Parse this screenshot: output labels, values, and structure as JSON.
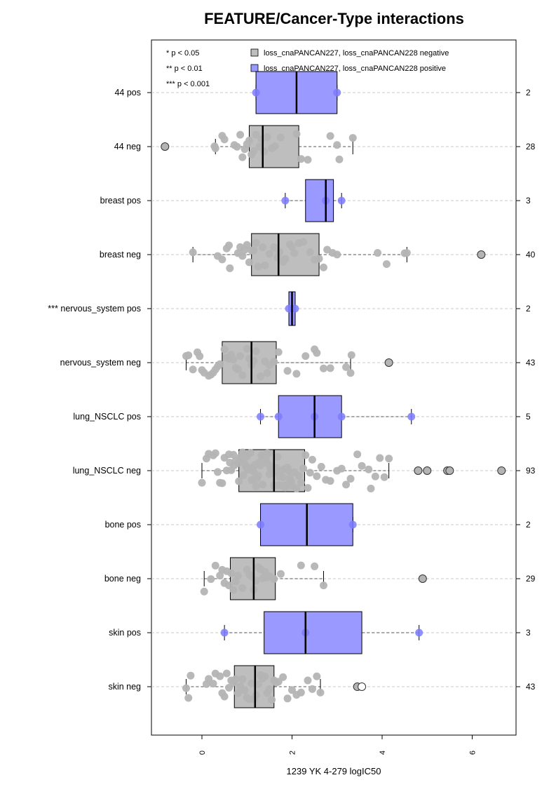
{
  "chart_data": {
    "type": "boxplot",
    "title": "FEATURE/Cancer-Type interactions",
    "xlabel": "1239 YK 4-279 logIC50",
    "ylabel": "",
    "xlim": [
      -1.1,
      7.0
    ],
    "x_ticks": [
      "0",
      "2",
      "4",
      "6"
    ],
    "grid": "horizontal dashed",
    "significance_legend": [
      "* p < 0.05",
      "** p < 0.01",
      "*** p < 0.001"
    ],
    "legend": {
      "placement": "top",
      "entries": [
        {
          "label": "loss_cnaPANCAN227, loss_cnaPANCAN228 negative",
          "color": "#bebebe"
        },
        {
          "label": "loss_cnaPANCAN227, loss_cnaPANCAN228 positive",
          "color": "#9999ff"
        }
      ]
    },
    "colors": {
      "negative": "#bebebe",
      "positive": "#9999ff",
      "negative_point": "#b4b4b4",
      "positive_point": "#7b7bff"
    },
    "groups": [
      {
        "label": "44 pos",
        "type": "positive",
        "n": "2",
        "box": [
          1.2,
          2.1,
          3.0
        ],
        "whiskers": [
          1.2,
          3.0
        ],
        "outliers": [],
        "points": [
          1.2,
          3.0
        ]
      },
      {
        "label": "44 neg",
        "type": "negative",
        "n": "28",
        "box": [
          1.05,
          1.35,
          2.15
        ],
        "whiskers": [
          0.3,
          3.35
        ],
        "outliers": [
          -0.82
        ],
        "points": [
          0.28,
          0.3,
          0.45,
          0.5,
          0.72,
          0.78,
          0.85,
          0.9,
          0.95,
          1.0,
          1.05,
          1.1,
          1.15,
          1.2,
          1.28,
          1.32,
          1.38,
          1.45,
          1.55,
          1.62,
          1.75,
          2.1,
          2.2,
          2.35,
          2.85,
          3.0,
          3.05,
          3.35
        ]
      },
      {
        "label": "breast pos",
        "type": "positive",
        "n": "3",
        "box": [
          2.3,
          2.75,
          2.92
        ],
        "whiskers": [
          1.85,
          3.1
        ],
        "outliers": [],
        "points": [
          1.85,
          2.75,
          3.1
        ]
      },
      {
        "label": "breast neg",
        "type": "negative",
        "n": "40",
        "box": [
          1.1,
          1.7,
          2.6
        ],
        "whiskers": [
          -0.2,
          4.55
        ],
        "outliers": [
          6.2
        ],
        "points": [
          -0.2,
          0.35,
          0.45,
          0.55,
          0.6,
          0.62,
          0.8,
          0.85,
          0.9,
          0.95,
          1.0,
          1.05,
          1.1,
          1.15,
          1.2,
          1.25,
          1.35,
          1.4,
          1.5,
          1.6,
          1.68,
          1.72,
          1.8,
          1.85,
          1.95,
          2.0,
          2.05,
          2.15,
          2.25,
          2.4,
          2.5,
          2.6,
          2.7,
          2.78,
          2.9,
          3.0,
          3.9,
          4.1,
          4.5,
          4.55
        ]
      },
      {
        "label": "*** nervous_system pos",
        "type": "positive",
        "n": "2",
        "box": [
          1.93,
          2.0,
          2.07
        ],
        "whiskers": [
          1.93,
          2.07
        ],
        "outliers": [],
        "points": [
          1.93,
          2.07
        ]
      },
      {
        "label": "nervous_system neg",
        "type": "negative",
        "n": "43",
        "box": [
          0.45,
          1.1,
          1.65
        ],
        "whiskers": [
          -0.35,
          3.3
        ],
        "outliers": [
          4.15
        ],
        "points": [
          -0.35,
          -0.3,
          -0.2,
          -0.1,
          -0.05,
          0.0,
          0.05,
          0.15,
          0.2,
          0.25,
          0.3,
          0.35,
          0.4,
          0.5,
          0.55,
          0.6,
          0.65,
          0.7,
          0.75,
          0.8,
          0.85,
          0.9,
          1.0,
          1.05,
          1.1,
          1.15,
          1.2,
          1.3,
          1.4,
          1.45,
          1.5,
          1.6,
          1.7,
          1.9,
          2.1,
          2.3,
          2.5,
          2.55,
          2.7,
          2.85,
          3.2,
          3.3,
          3.32
        ]
      },
      {
        "label": "lung_NSCLC pos",
        "type": "positive",
        "n": "5",
        "box": [
          1.7,
          2.5,
          3.1
        ],
        "whiskers": [
          1.3,
          4.65
        ],
        "outliers": [],
        "points": [
          1.3,
          1.7,
          2.5,
          3.1,
          4.65
        ]
      },
      {
        "label": "lung_NSCLC neg",
        "type": "negative",
        "n": "93",
        "box": [
          0.82,
          1.6,
          2.28
        ],
        "whiskers": [
          0.0,
          4.15
        ],
        "outliers": [
          4.8,
          5.0,
          5.45,
          5.5,
          6.65
        ],
        "points": [
          0.0,
          0.1,
          0.15,
          0.25,
          0.3,
          0.35,
          0.4,
          0.45,
          0.5,
          0.55,
          0.6,
          0.62,
          0.65,
          0.7,
          0.72,
          0.75,
          0.8,
          0.82,
          0.85,
          0.88,
          0.9,
          0.92,
          0.95,
          0.98,
          1.0,
          1.02,
          1.05,
          1.08,
          1.1,
          1.12,
          1.15,
          1.18,
          1.2,
          1.22,
          1.25,
          1.28,
          1.3,
          1.32,
          1.35,
          1.38,
          1.4,
          1.42,
          1.45,
          1.48,
          1.5,
          1.52,
          1.55,
          1.58,
          1.6,
          1.62,
          1.65,
          1.68,
          1.7,
          1.72,
          1.75,
          1.78,
          1.8,
          1.82,
          1.85,
          1.88,
          1.9,
          1.92,
          1.95,
          1.98,
          2.0,
          2.05,
          2.1,
          2.15,
          2.2,
          2.25,
          2.3,
          2.35,
          2.4,
          2.55,
          2.65,
          2.75,
          2.85,
          3.0,
          3.1,
          3.2,
          3.3,
          3.45,
          3.55,
          3.7,
          3.75,
          3.85,
          3.95,
          4.05,
          4.15,
          2.45,
          1.15,
          0.95,
          1.45
        ]
      },
      {
        "label": "bone pos",
        "type": "positive",
        "n": "2",
        "box": [
          1.3,
          2.33,
          3.35
        ],
        "whiskers": [
          1.3,
          3.35
        ],
        "outliers": [],
        "points": [
          1.3,
          3.35
        ]
      },
      {
        "label": "bone neg",
        "type": "negative",
        "n": "29",
        "box": [
          0.63,
          1.15,
          1.63
        ],
        "whiskers": [
          0.05,
          2.7
        ],
        "outliers": [
          4.9
        ],
        "points": [
          0.05,
          0.2,
          0.3,
          0.4,
          0.45,
          0.5,
          0.55,
          0.6,
          0.65,
          0.7,
          0.75,
          0.8,
          0.9,
          1.0,
          1.05,
          1.1,
          1.15,
          1.2,
          1.25,
          1.3,
          1.35,
          1.4,
          1.5,
          1.6,
          1.75,
          2.2,
          2.5,
          2.7,
          1.45
        ]
      },
      {
        "label": "skin pos",
        "type": "positive",
        "n": "3",
        "box": [
          1.38,
          2.3,
          3.55
        ],
        "whiskers": [
          0.5,
          4.82
        ],
        "outliers": [],
        "points": [
          0.5,
          2.3,
          4.82
        ]
      },
      {
        "label": "skin neg",
        "type": "negative",
        "n": "43",
        "box": [
          0.72,
          1.18,
          1.6
        ],
        "whiskers": [
          -0.35,
          2.63
        ],
        "outliers": [
          3.45,
          3.55
        ],
        "points": [
          -0.35,
          -0.3,
          -0.25,
          0.1,
          0.15,
          0.25,
          0.3,
          0.4,
          0.45,
          0.5,
          0.55,
          0.6,
          0.65,
          0.7,
          0.75,
          0.8,
          0.85,
          0.9,
          0.95,
          1.0,
          1.05,
          1.1,
          1.15,
          1.2,
          1.25,
          1.3,
          1.35,
          1.4,
          1.45,
          1.5,
          1.55,
          1.6,
          1.65,
          1.7,
          1.8,
          1.9,
          2.0,
          2.1,
          2.2,
          2.35,
          2.45,
          2.55,
          2.63
        ]
      }
    ]
  }
}
